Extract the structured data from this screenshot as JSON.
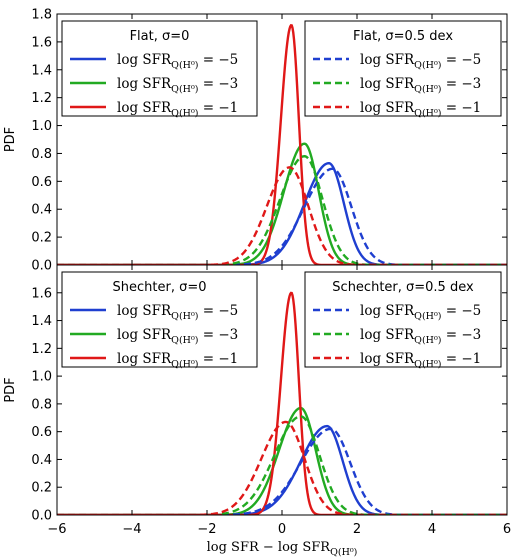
{
  "chart_data": [
    {
      "type": "line",
      "ylabel": "PDF",
      "xlim": [
        -6,
        6
      ],
      "ylim": [
        0,
        1.8
      ],
      "yticks": [
        "0.0",
        "0.2",
        "0.4",
        "0.6",
        "0.8",
        "1.0",
        "1.2",
        "1.4",
        "1.6",
        "1.8"
      ],
      "xtick_labels_shown": false,
      "legends": [
        {
          "title": "Flat, σ=0",
          "position": "top-left",
          "style": "solid",
          "entries": [
            "log SFR_Q(H⁰) = −5",
            "log SFR_Q(H⁰) = −3",
            "log SFR_Q(H⁰) = −1"
          ]
        },
        {
          "title": "Flat, σ=0.5 dex",
          "position": "top-right",
          "style": "dashed",
          "entries": [
            "log SFR_Q(H⁰) = −5",
            "log SFR_Q(H⁰) = −3",
            "log SFR_Q(H⁰) = −1"
          ]
        }
      ],
      "series": [
        {
          "group": "σ=0",
          "color": "#1f3fd0",
          "style": "solid",
          "peak_x": 1.25,
          "peak_y": 0.73,
          "width_left": 0.65,
          "width_right": 0.4,
          "x": [
            -0.4,
            0.2,
            0.6,
            1.0,
            1.25,
            1.5,
            1.8,
            2.2
          ],
          "y": [
            0.0,
            0.05,
            0.22,
            0.57,
            0.73,
            0.62,
            0.18,
            0.0
          ]
        },
        {
          "group": "σ=0",
          "color": "#22aa22",
          "style": "solid",
          "peak_x": 0.6,
          "peak_y": 0.87,
          "width_left": 0.55,
          "width_right": 0.38,
          "x": [
            -1.2,
            -0.4,
            0.2,
            0.6,
            1.0,
            1.4,
            1.8
          ],
          "y": [
            0.0,
            0.18,
            0.6,
            0.87,
            0.57,
            0.08,
            0.0
          ]
        },
        {
          "group": "σ=0",
          "color": "#e01818",
          "style": "solid",
          "peak_x": 0.25,
          "peak_y": 1.72,
          "width_left": 0.28,
          "width_right": 0.2,
          "x": [
            -1.0,
            -0.3,
            0.0,
            0.25,
            0.5,
            0.8,
            1.2
          ],
          "y": [
            0.0,
            0.16,
            0.93,
            1.72,
            1.0,
            0.1,
            0.0
          ]
        },
        {
          "group": "σ=0.5 dex",
          "color": "#1f3fd0",
          "style": "dashed",
          "peak_x": 1.35,
          "peak_y": 0.69,
          "width_left": 0.75,
          "width_right": 0.5,
          "x": [
            -0.6,
            0.2,
            0.8,
            1.35,
            1.8,
            2.3,
            3.0
          ],
          "y": [
            0.0,
            0.06,
            0.35,
            0.69,
            0.45,
            0.08,
            0.0
          ]
        },
        {
          "group": "σ=0.5 dex",
          "color": "#22aa22",
          "style": "dashed",
          "peak_x": 0.6,
          "peak_y": 0.78,
          "width_left": 0.65,
          "width_right": 0.48,
          "x": [
            -1.6,
            -0.6,
            0.2,
            0.6,
            1.1,
            1.6,
            2.4
          ],
          "y": [
            0.0,
            0.16,
            0.62,
            0.78,
            0.48,
            0.12,
            0.0
          ]
        },
        {
          "group": "σ=0.5 dex",
          "color": "#e01818",
          "style": "dashed",
          "peak_x": 0.2,
          "peak_y": 0.7,
          "width_left": 0.6,
          "width_right": 0.5,
          "x": [
            -1.8,
            -0.8,
            -0.2,
            0.2,
            0.7,
            1.2,
            2.0
          ],
          "y": [
            0.0,
            0.14,
            0.55,
            0.7,
            0.42,
            0.1,
            0.0
          ]
        }
      ]
    },
    {
      "type": "line",
      "ylabel": "PDF",
      "xlabel": "log SFR − log SFR_Q(H⁰)",
      "xlim": [
        -6,
        6
      ],
      "ylim": [
        0,
        1.8
      ],
      "yticks": [
        "0.0",
        "0.2",
        "0.4",
        "0.6",
        "0.8",
        "1.0",
        "1.2",
        "1.4",
        "1.6"
      ],
      "xticks": [
        "−6",
        "−4",
        "−2",
        "0",
        "2",
        "4",
        "6"
      ],
      "legends": [
        {
          "title": "Shechter, σ=0",
          "position": "top-left",
          "style": "solid",
          "entries": [
            "log SFR_Q(H⁰) = −5",
            "log SFR_Q(H⁰) = −3",
            "log SFR_Q(H⁰) = −1"
          ]
        },
        {
          "title": "Schechter, σ=0.5 dex",
          "position": "top-right",
          "style": "dashed",
          "entries": [
            "log SFR_Q(H⁰) = −5",
            "log SFR_Q(H⁰) = −3",
            "log SFR_Q(H⁰) = −1"
          ]
        }
      ],
      "series": [
        {
          "group": "σ=0",
          "color": "#1f3fd0",
          "style": "solid",
          "peak_x": 1.2,
          "peak_y": 0.64,
          "width_left": 0.7,
          "width_right": 0.42,
          "x": [
            -0.6,
            0.2,
            0.6,
            1.0,
            1.2,
            1.5,
            1.9,
            2.4
          ],
          "y": [
            0.0,
            0.05,
            0.2,
            0.5,
            0.64,
            0.55,
            0.15,
            0.0
          ]
        },
        {
          "group": "σ=0",
          "color": "#22aa22",
          "style": "solid",
          "peak_x": 0.5,
          "peak_y": 0.77,
          "width_left": 0.58,
          "width_right": 0.4,
          "x": [
            -1.4,
            -0.5,
            0.1,
            0.5,
            0.9,
            1.3,
            1.9
          ],
          "y": [
            0.0,
            0.16,
            0.55,
            0.77,
            0.5,
            0.08,
            0.0
          ]
        },
        {
          "group": "σ=0",
          "color": "#e01818",
          "style": "solid",
          "peak_x": 0.25,
          "peak_y": 1.6,
          "width_left": 0.28,
          "width_right": 0.2,
          "x": [
            -1.0,
            -0.3,
            0.0,
            0.25,
            0.5,
            0.8,
            1.2
          ],
          "y": [
            0.0,
            0.15,
            0.87,
            1.6,
            0.93,
            0.09,
            0.0
          ]
        },
        {
          "group": "σ=0.5 dex",
          "color": "#1f3fd0",
          "style": "dashed",
          "peak_x": 1.3,
          "peak_y": 0.62,
          "width_left": 0.8,
          "width_right": 0.52,
          "x": [
            -0.8,
            0.0,
            0.7,
            1.3,
            1.8,
            2.4,
            3.2
          ],
          "y": [
            0.0,
            0.05,
            0.3,
            0.62,
            0.4,
            0.07,
            0.0
          ]
        },
        {
          "group": "σ=0.5 dex",
          "color": "#22aa22",
          "style": "dashed",
          "peak_x": 0.5,
          "peak_y": 0.71,
          "width_left": 0.7,
          "width_right": 0.5,
          "x": [
            -1.8,
            -0.8,
            0.0,
            0.5,
            1.0,
            1.6,
            2.4
          ],
          "y": [
            0.0,
            0.15,
            0.55,
            0.71,
            0.44,
            0.1,
            0.0
          ]
        },
        {
          "group": "σ=0.5 dex",
          "color": "#e01818",
          "style": "dashed",
          "peak_x": 0.1,
          "peak_y": 0.67,
          "width_left": 0.65,
          "width_right": 0.5,
          "x": [
            -2.0,
            -1.0,
            -0.3,
            0.1,
            0.6,
            1.2,
            2.0
          ],
          "y": [
            0.0,
            0.13,
            0.52,
            0.67,
            0.4,
            0.08,
            0.0
          ]
        }
      ]
    }
  ]
}
